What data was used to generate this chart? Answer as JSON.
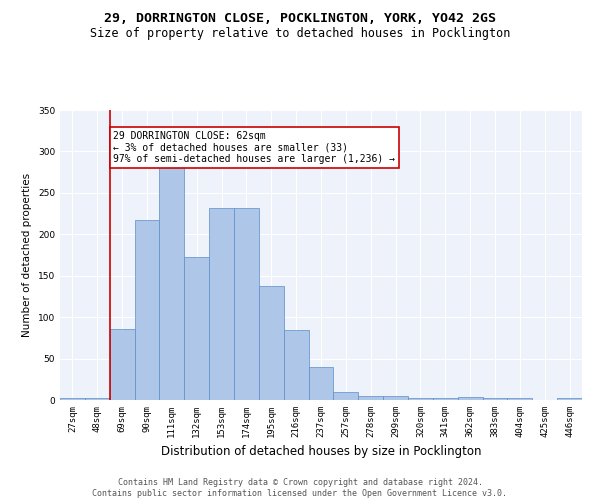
{
  "title": "29, DORRINGTON CLOSE, POCKLINGTON, YORK, YO42 2GS",
  "subtitle": "Size of property relative to detached houses in Pocklington",
  "xlabel": "Distribution of detached houses by size in Pocklington",
  "ylabel": "Number of detached properties",
  "categories": [
    "27sqm",
    "48sqm",
    "69sqm",
    "90sqm",
    "111sqm",
    "132sqm",
    "153sqm",
    "174sqm",
    "195sqm",
    "216sqm",
    "237sqm",
    "257sqm",
    "278sqm",
    "299sqm",
    "320sqm",
    "341sqm",
    "362sqm",
    "383sqm",
    "404sqm",
    "425sqm",
    "446sqm"
  ],
  "values": [
    2,
    2,
    86,
    217,
    283,
    172,
    232,
    232,
    138,
    85,
    40,
    10,
    5,
    5,
    2,
    2,
    4,
    2,
    2,
    0,
    2
  ],
  "bar_color": "#aec6e8",
  "bar_edge_color": "#5b8dc8",
  "background_color": "#eef2fb",
  "grid_color": "#ffffff",
  "vline_color": "#cc0000",
  "annotation_text": "29 DORRINGTON CLOSE: 62sqm\n← 3% of detached houses are smaller (33)\n97% of semi-detached houses are larger (1,236) →",
  "annotation_box_color": "#ffffff",
  "annotation_box_edge": "#cc0000",
  "footer_text": "Contains HM Land Registry data © Crown copyright and database right 2024.\nContains public sector information licensed under the Open Government Licence v3.0.",
  "ylim": [
    0,
    350
  ],
  "yticks": [
    0,
    50,
    100,
    150,
    200,
    250,
    300,
    350
  ],
  "title_fontsize": 9.5,
  "subtitle_fontsize": 8.5,
  "xlabel_fontsize": 8.5,
  "ylabel_fontsize": 7.5,
  "tick_fontsize": 6.5,
  "annotation_fontsize": 7,
  "footer_fontsize": 6
}
